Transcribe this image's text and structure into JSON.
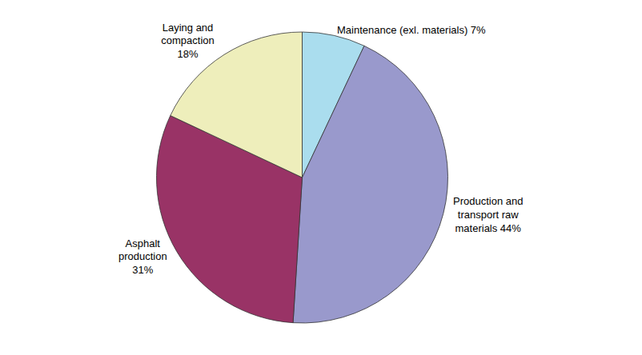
{
  "chart_data": {
    "type": "pie",
    "categories": [
      "Maintenance (exl. materials) 7%",
      "Production and\ntransport raw\nmaterials 44%",
      "Asphalt\nproduction\n31%",
      "Laying and\ncompaction\n18%"
    ],
    "values": [
      7,
      44,
      31,
      18
    ],
    "colors": [
      "#aaddee",
      "#9999cc",
      "#993366",
      "#eeeebb"
    ]
  }
}
